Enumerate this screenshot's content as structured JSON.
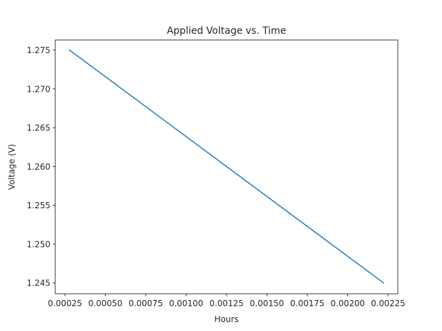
{
  "chart_data": {
    "type": "line",
    "title": "Applied Voltage vs. Time",
    "xlabel": "Hours",
    "ylabel": "Voltage (V)",
    "xlim": [
      0.00019,
      0.00231
    ],
    "ylim": [
      1.2436,
      1.2763
    ],
    "xticks": [
      0.00025,
      0.0005,
      0.00075,
      0.001,
      0.00125,
      0.0015,
      0.00175,
      0.002,
      0.00225
    ],
    "xtick_labels": [
      "0.00025",
      "0.00050",
      "0.00075",
      "0.00100",
      "0.00125",
      "0.00150",
      "0.00175",
      "0.00200",
      "0.00225"
    ],
    "yticks": [
      1.245,
      1.25,
      1.255,
      1.26,
      1.265,
      1.27,
      1.275
    ],
    "ytick_labels": [
      "1.245",
      "1.250",
      "1.255",
      "1.260",
      "1.265",
      "1.270",
      "1.275"
    ],
    "grid": false,
    "legend": "none",
    "series": [
      {
        "color": "#1f77b4",
        "x": [
          0.000278,
          0.002222
        ],
        "y": [
          1.275,
          1.245
        ]
      }
    ]
  }
}
